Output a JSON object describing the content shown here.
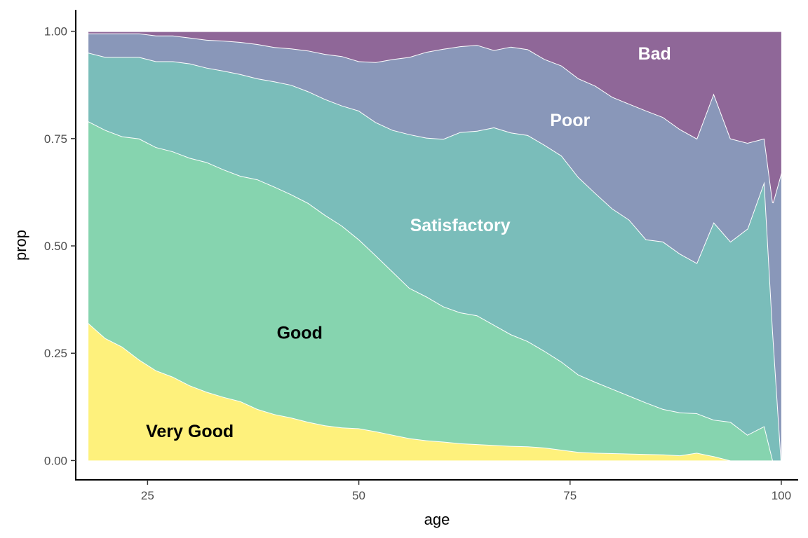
{
  "chart_data": {
    "type": "area",
    "stacked": true,
    "normalized": true,
    "title": "",
    "xlabel": "age",
    "ylabel": "prop",
    "xlim": [
      16.5,
      102
    ],
    "ylim": [
      -0.045,
      1.05
    ],
    "x_ticks": [
      25,
      50,
      75,
      100
    ],
    "x_tick_labels": [
      "25",
      "50",
      "75",
      "100"
    ],
    "y_ticks": [
      0,
      0.25,
      0.5,
      0.75,
      1
    ],
    "y_tick_labels": [
      "0.00",
      "0.25",
      "0.50",
      "0.75",
      "1.00"
    ],
    "grid": false,
    "legend": "none",
    "x": [
      18,
      20,
      22,
      24,
      26,
      28,
      30,
      32,
      34,
      36,
      38,
      40,
      42,
      44,
      46,
      48,
      50,
      52,
      54,
      56,
      58,
      60,
      62,
      64,
      66,
      68,
      70,
      72,
      74,
      76,
      78,
      80,
      82,
      84,
      86,
      88,
      90,
      92,
      94,
      96,
      98,
      99,
      100
    ],
    "series": [
      {
        "name": "Very Good",
        "color": "#fde725",
        "label_color": "#000000",
        "label_x": 30,
        "label_y": 0.065,
        "values": [
          0.32,
          0.285,
          0.265,
          0.235,
          0.21,
          0.195,
          0.175,
          0.16,
          0.148,
          0.138,
          0.12,
          0.108,
          0.1,
          0.09,
          0.082,
          0.077,
          0.075,
          0.068,
          0.06,
          0.052,
          0.047,
          0.044,
          0.04,
          0.038,
          0.036,
          0.034,
          0.033,
          0.03,
          0.025,
          0.02,
          0.018,
          0.017,
          0.016,
          0.015,
          0.014,
          0.012,
          0.018,
          0.01,
          0,
          0,
          0,
          0,
          0
        ]
      },
      {
        "name": "Good",
        "color": "#35b779",
        "label_color": "#000000",
        "label_x": 43,
        "label_y": 0.295,
        "values": [
          0.47,
          0.485,
          0.49,
          0.515,
          0.52,
          0.525,
          0.53,
          0.535,
          0.53,
          0.525,
          0.535,
          0.53,
          0.52,
          0.51,
          0.49,
          0.47,
          0.44,
          0.41,
          0.38,
          0.35,
          0.335,
          0.315,
          0.305,
          0.3,
          0.28,
          0.26,
          0.245,
          0.225,
          0.205,
          0.18,
          0.165,
          0.15,
          0.135,
          0.12,
          0.106,
          0.1,
          0.092,
          0.085,
          0.09,
          0.06,
          0.08,
          0,
          0
        ]
      },
      {
        "name": "Satisfactory",
        "color": "#21918c",
        "label_color": "#ffffff",
        "label_x": 62,
        "label_y": 0.545,
        "values": [
          0.16,
          0.17,
          0.185,
          0.19,
          0.2,
          0.21,
          0.22,
          0.22,
          0.23,
          0.237,
          0.235,
          0.245,
          0.255,
          0.26,
          0.27,
          0.28,
          0.3,
          0.31,
          0.33,
          0.358,
          0.37,
          0.39,
          0.42,
          0.43,
          0.46,
          0.47,
          0.48,
          0.48,
          0.48,
          0.46,
          0.44,
          0.42,
          0.41,
          0.38,
          0.39,
          0.37,
          0.35,
          0.46,
          0.42,
          0.48,
          0.57,
          0.3,
          0
        ]
      },
      {
        "name": "Poor",
        "color": "#3b528b",
        "label_color": "#ffffff",
        "label_x": 75,
        "label_y": 0.79,
        "values": [
          0.045,
          0.055,
          0.055,
          0.055,
          0.06,
          0.06,
          0.06,
          0.065,
          0.07,
          0.075,
          0.08,
          0.08,
          0.085,
          0.095,
          0.105,
          0.115,
          0.115,
          0.14,
          0.165,
          0.18,
          0.2,
          0.21,
          0.2,
          0.2,
          0.18,
          0.2,
          0.2,
          0.2,
          0.21,
          0.23,
          0.25,
          0.26,
          0.27,
          0.3,
          0.29,
          0.29,
          0.29,
          0.3,
          0.24,
          0.2,
          0.1,
          0.3,
          0.67
        ]
      },
      {
        "name": "Bad",
        "color": "#440154",
        "label_color": "#ffffff",
        "label_x": 85,
        "label_y": 0.945,
        "values": [
          0.005,
          0.005,
          0.005,
          0.005,
          0.01,
          0.01,
          0.015,
          0.02,
          0.022,
          0.025,
          0.03,
          0.037,
          0.04,
          0.045,
          0.053,
          0.058,
          0.07,
          0.072,
          0.065,
          0.06,
          0.048,
          0.041,
          0.035,
          0.032,
          0.044,
          0.036,
          0.042,
          0.065,
          0.08,
          0.11,
          0.127,
          0.153,
          0.169,
          0.185,
          0.2,
          0.228,
          0.25,
          0.145,
          0.25,
          0.26,
          0.25,
          0.4,
          0.33
        ]
      }
    ]
  }
}
